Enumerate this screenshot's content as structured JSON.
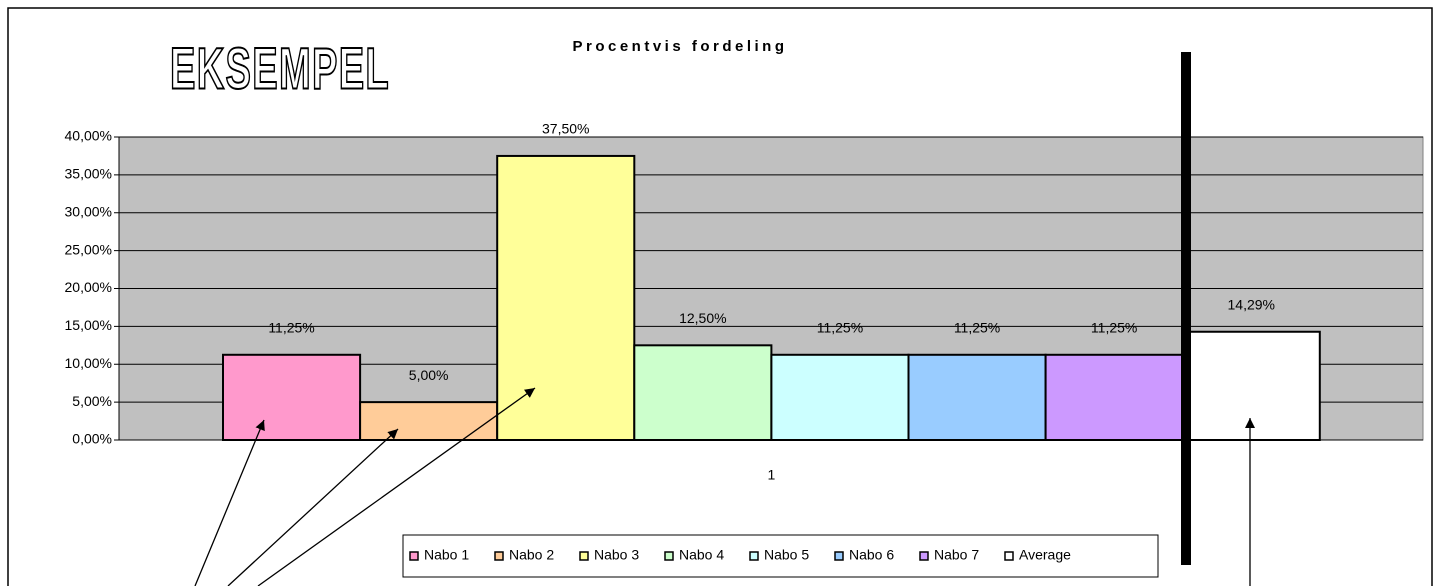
{
  "chart_data": {
    "type": "bar",
    "title": "Procentvis fordeling",
    "annotation": "EKSEMPEL",
    "categories": [
      "1"
    ],
    "series": [
      {
        "name": "Nabo 1",
        "color": "#ff99cc",
        "values": [
          11.25
        ],
        "value_labels": [
          "11,25%"
        ]
      },
      {
        "name": "Nabo 2",
        "color": "#ffcc99",
        "values": [
          5
        ],
        "value_labels": [
          "5,00%"
        ]
      },
      {
        "name": "Nabo 3",
        "color": "#ffff99",
        "values": [
          37.5
        ],
        "value_labels": [
          "37,50%"
        ]
      },
      {
        "name": "Nabo 4",
        "color": "#ccffcc",
        "values": [
          12.5
        ],
        "value_labels": [
          "12,50%"
        ]
      },
      {
        "name": "Nabo 5",
        "color": "#ccffff",
        "values": [
          11.25
        ],
        "value_labels": [
          "11,25%"
        ]
      },
      {
        "name": "Nabo 6",
        "color": "#99ccff",
        "values": [
          11.25
        ],
        "value_labels": [
          "11,25%"
        ]
      },
      {
        "name": "Nabo 7",
        "color": "#cc99ff",
        "values": [
          11.25
        ],
        "value_labels": [
          "11,25%"
        ]
      },
      {
        "name": "Average",
        "color": "#ffffff",
        "values": [
          14.29
        ],
        "value_labels": [
          "14,29%"
        ]
      }
    ],
    "ylim": [
      0,
      40
    ],
    "yticks": [
      {
        "value": 0,
        "label": "0,00%"
      },
      {
        "value": 5,
        "label": "5,00%"
      },
      {
        "value": 10,
        "label": "10,00%"
      },
      {
        "value": 15,
        "label": "15,00%"
      },
      {
        "value": 20,
        "label": "20,00%"
      },
      {
        "value": 25,
        "label": "25,00%"
      },
      {
        "value": 30,
        "label": "30,00%"
      },
      {
        "value": 35,
        "label": "35,00%"
      },
      {
        "value": 40,
        "label": "40,00%"
      }
    ],
    "grid": true,
    "legend": "bottom"
  }
}
